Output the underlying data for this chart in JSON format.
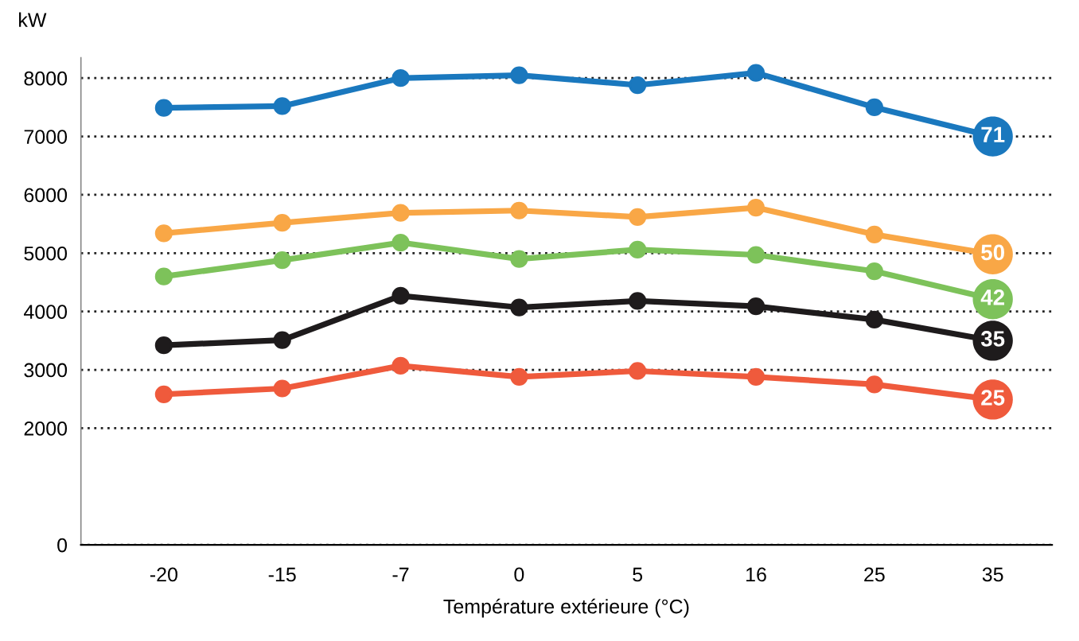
{
  "chart_data": {
    "type": "line",
    "ylabel": "kW",
    "xlabel": "Température extérieure (°C)",
    "categories": [
      "-20",
      "-15",
      "-7",
      "0",
      "5",
      "16",
      "25",
      "35"
    ],
    "series": [
      {
        "name": "71",
        "color": "#1a78be",
        "values": [
          7490,
          7520,
          8000,
          8050,
          7880,
          8090,
          7500,
          7000
        ]
      },
      {
        "name": "50",
        "color": "#f9a746",
        "values": [
          5340,
          5520,
          5690,
          5730,
          5620,
          5780,
          5320,
          4980
        ]
      },
      {
        "name": "42",
        "color": "#7dc25a",
        "values": [
          4600,
          4880,
          5180,
          4900,
          5060,
          4970,
          4690,
          4210
        ]
      },
      {
        "name": "35",
        "color": "#1e1b1c",
        "values": [
          3420,
          3510,
          4270,
          4070,
          4180,
          4090,
          3860,
          3500
        ]
      },
      {
        "name": "25",
        "color": "#ef5a3c",
        "values": [
          2580,
          2680,
          3070,
          2880,
          2980,
          2880,
          2750,
          2490
        ]
      }
    ],
    "ylim": [
      0,
      8350
    ],
    "yticks": [
      0,
      2000,
      3000,
      4000,
      5000,
      6000,
      7000,
      8000
    ],
    "grid": "y",
    "marker": "circle",
    "line_style": "solid",
    "legend": false
  }
}
